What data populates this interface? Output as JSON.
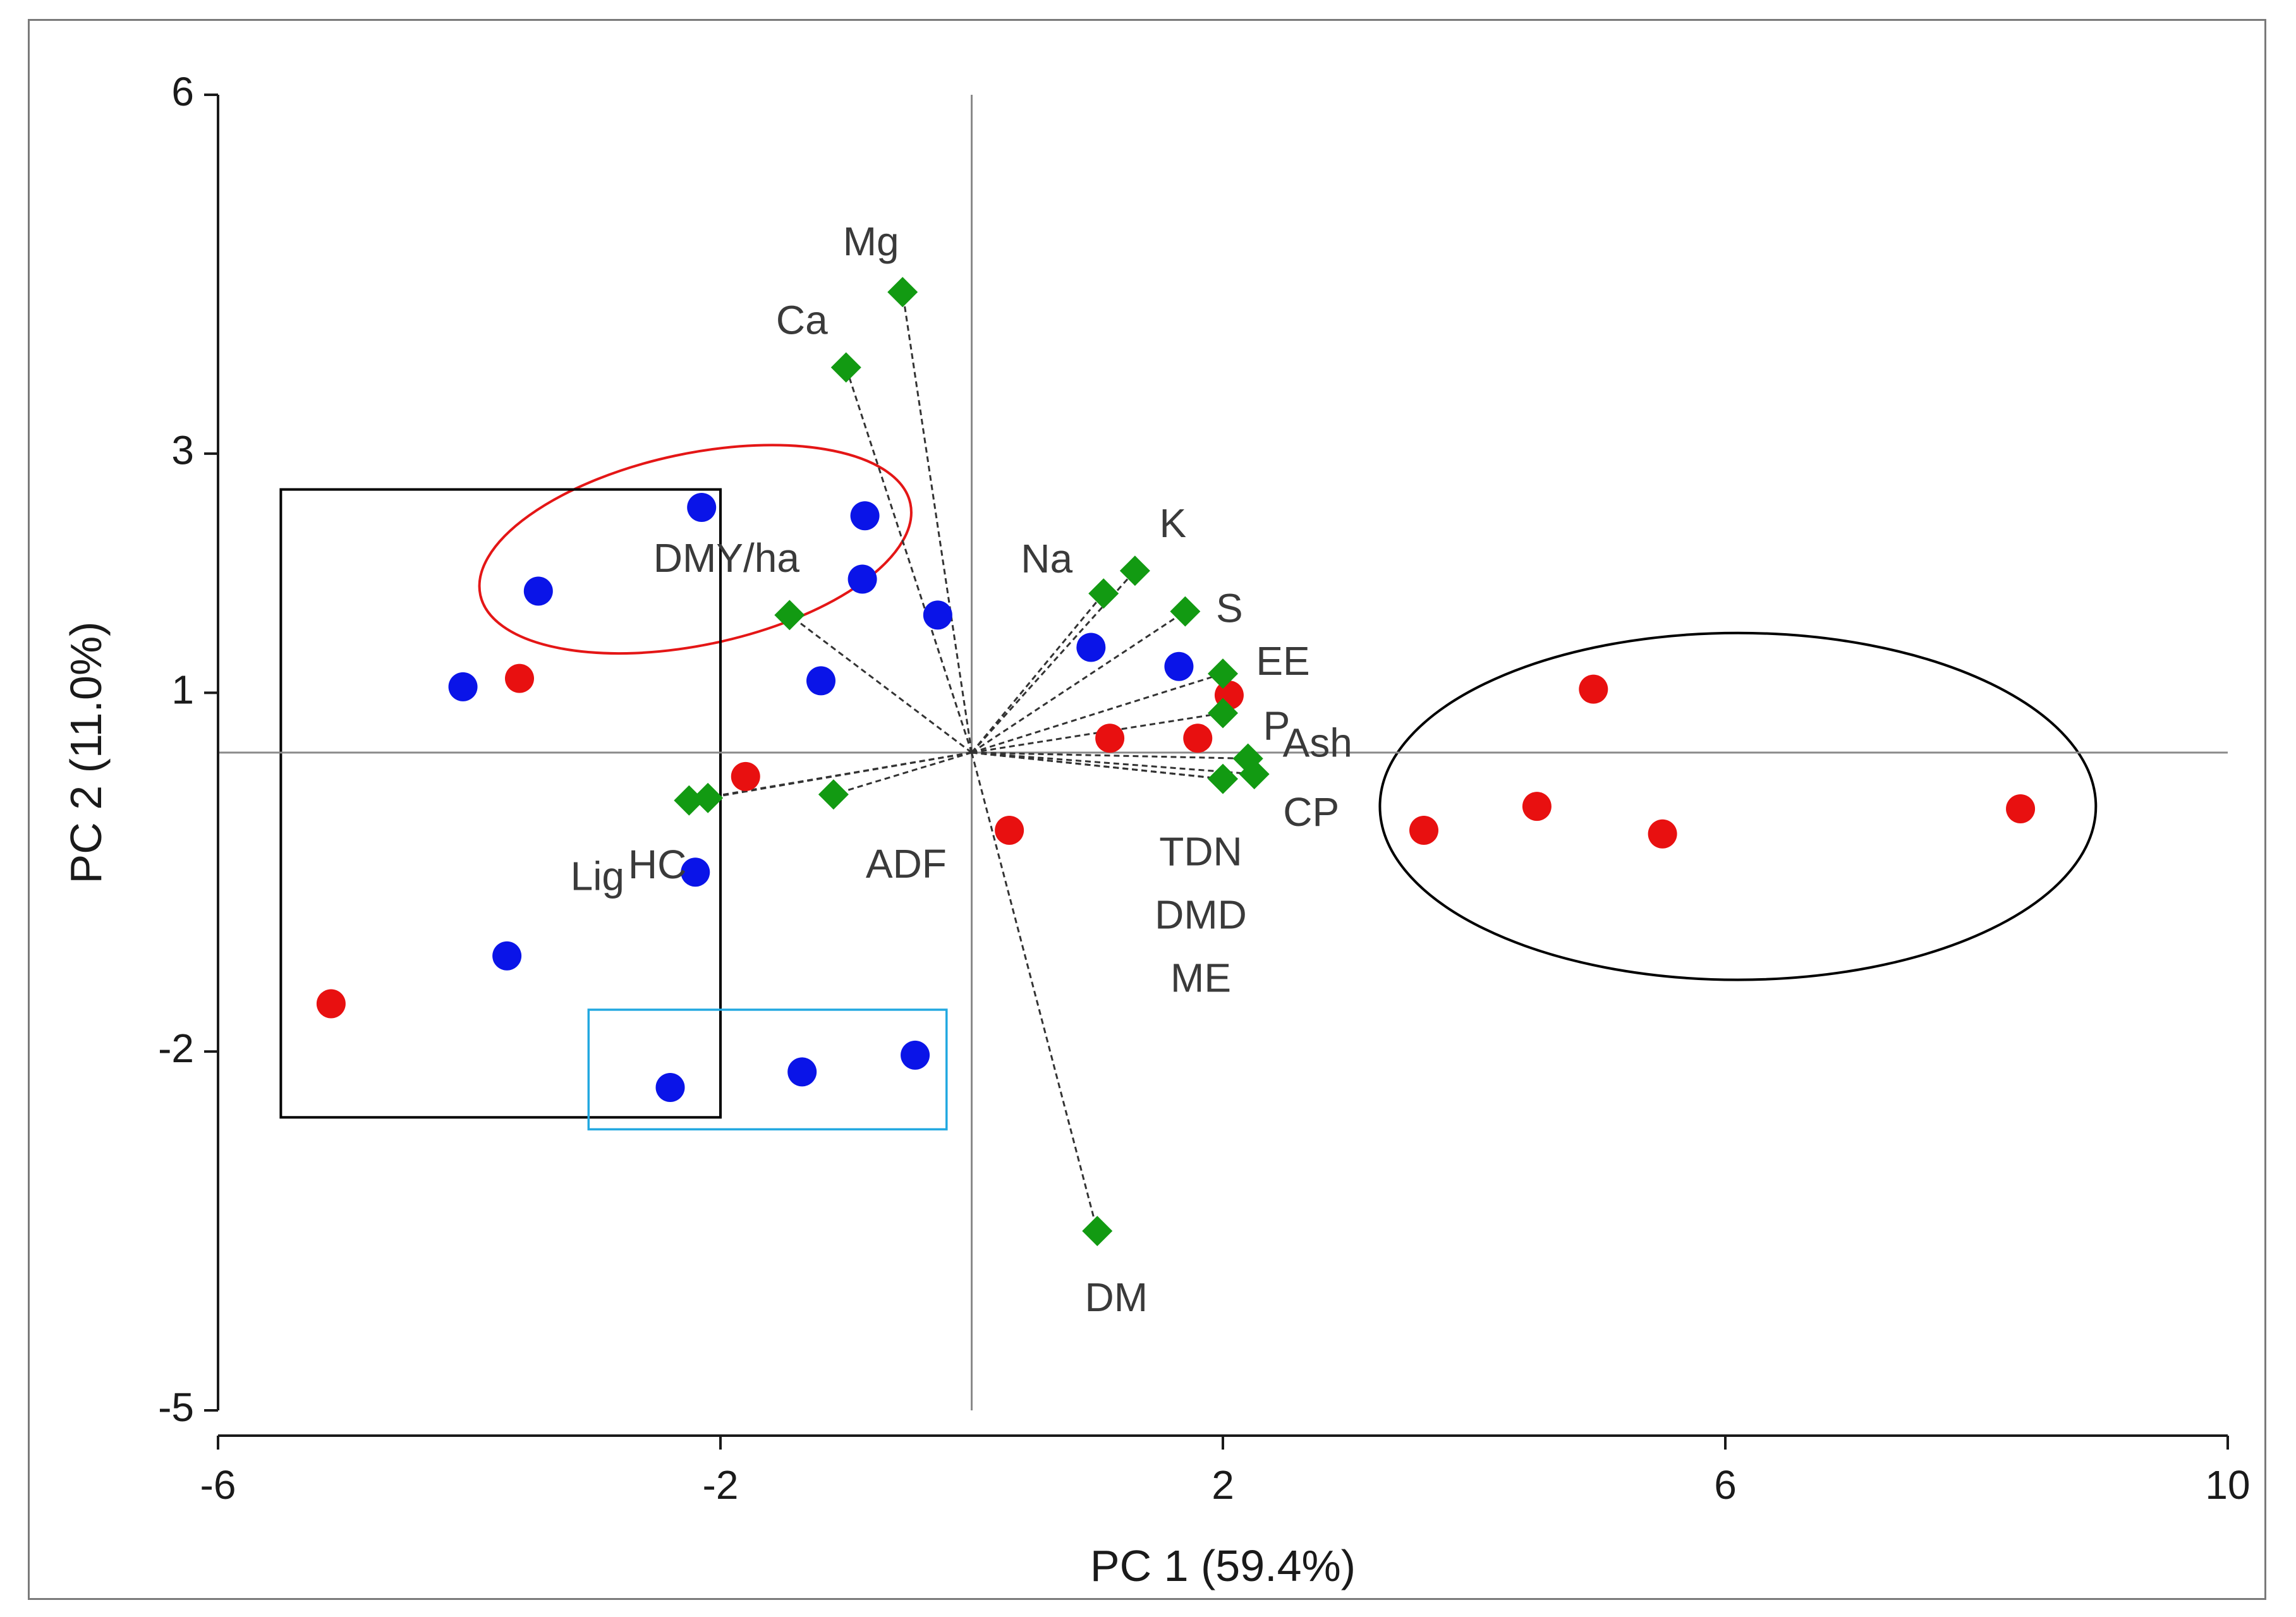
{
  "chart_data": {
    "type": "scatter",
    "subtype": "pca-biplot",
    "title": "",
    "xlabel": "PC 1 (59.4%)",
    "ylabel": "PC 2 (11.0%)",
    "xlim": [
      -6,
      10
    ],
    "ylim": [
      -5,
      6
    ],
    "xticks": [
      -6,
      -2,
      2,
      6,
      10
    ],
    "yticks": [
      6,
      3,
      1,
      -2,
      -5
    ],
    "grid": false,
    "legend": "none",
    "origin_lines": {
      "x": 0,
      "y": 0.5
    },
    "colors": {
      "blue_points": "#0a14e8",
      "red_points": "#e81010",
      "variables": "#129a12",
      "vector_lines": "#333333",
      "origin_lines": "#8a8a8a",
      "red_ellipse": "#e41616",
      "black_ellipse": "#000000",
      "black_rect": "#000000",
      "cyan_rect": "#22a8e0"
    },
    "series": [
      {
        "color": "blue",
        "points": [
          {
            "x": -2.15,
            "y": 2.55
          },
          {
            "x": -0.85,
            "y": 2.48
          },
          {
            "x": -3.45,
            "y": 1.85
          },
          {
            "x": -0.87,
            "y": 1.95
          },
          {
            "x": -0.27,
            "y": 1.65
          },
          {
            "x": 0.95,
            "y": 1.38
          },
          {
            "x": 1.65,
            "y": 1.22
          },
          {
            "x": -4.05,
            "y": 1.05
          },
          {
            "x": -1.2,
            "y": 1.1
          },
          {
            "x": -2.2,
            "y": -0.5
          },
          {
            "x": -3.7,
            "y": -1.2
          },
          {
            "x": -2.4,
            "y": -2.3
          },
          {
            "x": -1.35,
            "y": -2.17
          },
          {
            "x": -0.45,
            "y": -2.03
          }
        ]
      },
      {
        "color": "red",
        "points": [
          {
            "x": -3.6,
            "y": 1.12
          },
          {
            "x": -1.8,
            "y": 0.3
          },
          {
            "x": 0.3,
            "y": -0.15
          },
          {
            "x": 1.1,
            "y": 0.62
          },
          {
            "x": 1.8,
            "y": 0.62
          },
          {
            "x": 2.05,
            "y": 0.98
          },
          {
            "x": 4.95,
            "y": 1.03
          },
          {
            "x": 3.6,
            "y": -0.15
          },
          {
            "x": 4.5,
            "y": 0.05
          },
          {
            "x": 5.5,
            "y": -0.18
          },
          {
            "x": 8.35,
            "y": 0.03
          },
          {
            "x": -5.1,
            "y": -1.6
          }
        ]
      }
    ],
    "variables": [
      {
        "name": "Mg",
        "x": -0.55,
        "y": 4.35
      },
      {
        "name": "Ca",
        "x": -1.0,
        "y": 3.72
      },
      {
        "name": "DMY/ha",
        "x": -1.45,
        "y": 1.65
      },
      {
        "name": "Na",
        "x": 1.05,
        "y": 1.83
      },
      {
        "name": "K",
        "x": 1.3,
        "y": 2.02
      },
      {
        "name": "S",
        "x": 1.7,
        "y": 1.68
      },
      {
        "name": "EE",
        "x": 2.0,
        "y": 1.16
      },
      {
        "name": "P",
        "x": 2.0,
        "y": 0.83
      },
      {
        "name": "Ash",
        "x": 2.2,
        "y": 0.45
      },
      {
        "name": "CP",
        "x": 2.25,
        "y": 0.32
      },
      {
        "name": "TDN",
        "x": 2.0,
        "y": 0.28
      },
      {
        "name": "DMD",
        "x": 2.0,
        "y": 0.28
      },
      {
        "name": "ME",
        "x": 2.0,
        "y": 0.28
      },
      {
        "name": "Lig",
        "x": -2.25,
        "y": 0.1
      },
      {
        "name": "HC",
        "x": -2.1,
        "y": 0.12
      },
      {
        "name": "ADF",
        "x": -1.1,
        "y": 0.15
      },
      {
        "name": "DM",
        "x": 1.0,
        "y": -3.5
      }
    ],
    "annotations": [
      {
        "shape": "ellipse",
        "color": "red",
        "center": [
          -2.2,
          2.2
        ],
        "radii": [
          1.75,
          0.8
        ]
      },
      {
        "shape": "ellipse",
        "color": "black",
        "center": [
          6.1,
          0.05
        ],
        "radii": [
          2.85,
          1.45
        ]
      },
      {
        "shape": "rectangle",
        "color": "black",
        "x0": -5.5,
        "x1": -2.0,
        "y0": -2.55,
        "y1": 2.7
      },
      {
        "shape": "rectangle",
        "color": "cyan",
        "x0": -3.05,
        "x1": -0.2,
        "y0": -2.65,
        "y1": -1.65
      }
    ]
  }
}
